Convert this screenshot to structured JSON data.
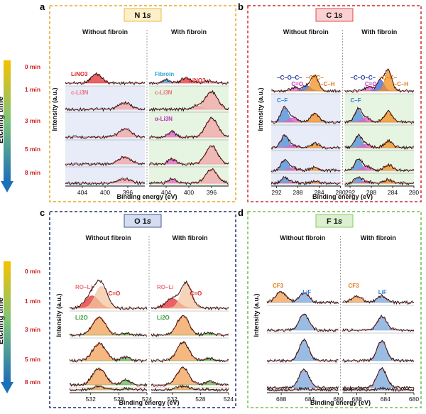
{
  "chart_data": [
    {
      "type": "line",
      "panel_letter": "a",
      "title": "N 1s",
      "title_parts": [
        "N 1",
        "s"
      ],
      "ylabel": "Intensity (a.u.)",
      "xlabel": "Binding energy (eV)",
      "subtitles": [
        "Without fibroin",
        "With fibroin"
      ],
      "x_ticks": [
        "404",
        "400",
        "396"
      ],
      "xlim": [
        407,
        393
      ],
      "time_rows": [
        "0 min",
        "1 min",
        "3 min",
        "5 min",
        "8 min"
      ],
      "colors": {
        "border": "#e6a820",
        "title_bg": "#fdf0c8",
        "bg_without": "#dde4f5",
        "bg_with": "#dcefd6",
        "label": "#d62728"
      },
      "annotations": {
        "without": [
          {
            "row": 0,
            "text": "LiNO3",
            "sub": "3",
            "base": "LiNO",
            "color": "#d62728"
          },
          {
            "row": 1,
            "text": "c-Li3N",
            "color": "#e8737a"
          }
        ],
        "with": [
          {
            "row": 0,
            "text": "Fibroin",
            "color": "#2a9fd6"
          },
          {
            "row": 0,
            "text": "LiNO3",
            "color": "#d62728"
          },
          {
            "row": 1,
            "text": "c-Li3N",
            "color": "#e8737a"
          },
          {
            "row": 2,
            "text": "α-Li3N",
            "color": "#c030c0"
          }
        ]
      },
      "peaks": {
        "without": [
          [
            {
              "center": 401.5,
              "amp": 0.55,
              "fwhm": 2.2,
              "color": "#e03030"
            }
          ],
          [
            {
              "center": 396.5,
              "amp": 0.28,
              "fwhm": 2.5,
              "color": "#f2a5a5"
            }
          ],
          [
            {
              "center": 396.5,
              "amp": 0.32,
              "fwhm": 2.5,
              "color": "#f2a5a5"
            }
          ],
          [
            {
              "center": 396.5,
              "amp": 0.3,
              "fwhm": 2.5,
              "color": "#f2a5a5"
            }
          ],
          [
            {
              "center": 396.5,
              "amp": 0.25,
              "fwhm": 2.5,
              "color": "#f2a5a5"
            }
          ]
        ],
        "with": [
          [
            {
              "center": 404.0,
              "amp": 0.22,
              "fwhm": 1.5,
              "color": "#2a9fd6"
            },
            {
              "center": 400.5,
              "amp": 0.3,
              "fwhm": 2.0,
              "color": "#e03030"
            },
            {
              "center": 396.5,
              "amp": 0.12,
              "fwhm": 2.5,
              "color": "#f2a5a5"
            }
          ],
          [
            {
              "center": 398.5,
              "amp": 0.15,
              "fwhm": 2.0,
              "color": "#f2a5a5"
            },
            {
              "center": 396.0,
              "amp": 0.75,
              "fwhm": 2.5,
              "color": "#f2a5a5"
            }
          ],
          [
            {
              "center": 403.0,
              "amp": 0.22,
              "fwhm": 1.5,
              "color": "#e060d0"
            },
            {
              "center": 396.0,
              "amp": 0.75,
              "fwhm": 2.5,
              "color": "#f2a5a5"
            }
          ],
          [
            {
              "center": 403.0,
              "amp": 0.22,
              "fwhm": 1.5,
              "color": "#e060d0"
            },
            {
              "center": 396.0,
              "amp": 0.75,
              "fwhm": 2.5,
              "color": "#f2a5a5"
            }
          ],
          [
            {
              "center": 403.0,
              "amp": 0.25,
              "fwhm": 1.5,
              "color": "#e060d0"
            },
            {
              "center": 396.0,
              "amp": 0.8,
              "fwhm": 2.5,
              "color": "#f2a5a5"
            }
          ]
        ]
      }
    },
    {
      "type": "line",
      "panel_letter": "b",
      "title": "C 1s",
      "title_parts": [
        "C 1",
        "s"
      ],
      "ylabel": "Intensity (a.u.)",
      "xlabel": "Binding energy (eV)",
      "subtitles": [
        "Without fibroin",
        "With fibroin"
      ],
      "x_ticks": [
        "292",
        "288",
        "284",
        "280"
      ],
      "xlim": [
        293,
        280
      ],
      "time_rows": [
        "0 min",
        "1 min",
        "3 min",
        "5 min",
        "8 min"
      ],
      "colors": {
        "border": "#d62728",
        "title_bg": "#fbd0d0",
        "bg_without": "#dde4f5",
        "bg_with": "#dcefd6"
      },
      "annotations": {
        "without": [
          {
            "row": 0,
            "text": "–C–O–C–",
            "color": "#2233aa"
          },
          {
            "row": 0,
            "text": "C=O",
            "color": "#c030c0"
          },
          {
            "row": 0,
            "text": "–C–C–",
            "color": "#e07a10"
          },
          {
            "row": 0,
            "text": "–C–H",
            "color": "#e07a10"
          },
          {
            "row": 1,
            "text": "C–F",
            "color": "#2a7fd6"
          }
        ],
        "with": [
          {
            "row": 0,
            "text": "–C–O–C–",
            "color": "#2233aa"
          },
          {
            "row": 0,
            "text": "C=O",
            "color": "#c030c0"
          },
          {
            "row": 0,
            "text": "–C–C–",
            "color": "#e07a10"
          },
          {
            "row": 0,
            "text": "–C–H",
            "color": "#e07a10"
          },
          {
            "row": 1,
            "text": "C–F",
            "color": "#2a7fd6"
          }
        ]
      },
      "peaks": {
        "without": [
          [
            {
              "center": 288.5,
              "amp": 0.15,
              "fwhm": 2.0,
              "color": "#e060d0"
            },
            {
              "center": 286.3,
              "amp": 0.25,
              "fwhm": 1.6,
              "color": "#4060d0"
            },
            {
              "center": 284.8,
              "amp": 0.75,
              "fwhm": 1.6,
              "color": "#f0901e"
            }
          ],
          [
            {
              "center": 290.5,
              "amp": 0.5,
              "fwhm": 1.6,
              "color": "#4a8fd8"
            },
            {
              "center": 289.0,
              "amp": 0.15,
              "fwhm": 2.0,
              "color": "#e060d0"
            },
            {
              "center": 284.8,
              "amp": 0.32,
              "fwhm": 1.8,
              "color": "#f0901e"
            }
          ],
          [
            {
              "center": 290.5,
              "amp": 0.52,
              "fwhm": 1.6,
              "color": "#4a8fd8"
            },
            {
              "center": 289.0,
              "amp": 0.12,
              "fwhm": 2.0,
              "color": "#e060d0"
            },
            {
              "center": 284.8,
              "amp": 0.18,
              "fwhm": 1.8,
              "color": "#f0901e"
            }
          ],
          [
            {
              "center": 290.5,
              "amp": 0.5,
              "fwhm": 1.6,
              "color": "#4a8fd8"
            },
            {
              "center": 289.0,
              "amp": 0.12,
              "fwhm": 2.0,
              "color": "#e060d0"
            },
            {
              "center": 284.8,
              "amp": 0.15,
              "fwhm": 1.8,
              "color": "#f0901e"
            }
          ],
          [
            {
              "center": 290.5,
              "amp": 0.45,
              "fwhm": 1.6,
              "color": "#4a8fd8"
            },
            {
              "center": 289.0,
              "amp": 0.1,
              "fwhm": 2.0,
              "color": "#e060d0"
            },
            {
              "center": 284.8,
              "amp": 0.15,
              "fwhm": 1.8,
              "color": "#f0901e"
            }
          ]
        ],
        "with": [
          [
            {
              "center": 288.5,
              "amp": 0.2,
              "fwhm": 1.5,
              "color": "#e060d0"
            },
            {
              "center": 286.3,
              "amp": 0.55,
              "fwhm": 1.5,
              "color": "#4060d0"
            },
            {
              "center": 284.8,
              "amp": 1.0,
              "fwhm": 1.5,
              "color": "#f0901e"
            }
          ],
          [
            {
              "center": 290.5,
              "amp": 0.45,
              "fwhm": 1.6,
              "color": "#4a8fd8"
            },
            {
              "center": 289.0,
              "amp": 0.15,
              "fwhm": 2.0,
              "color": "#e060d0"
            },
            {
              "center": 284.8,
              "amp": 0.38,
              "fwhm": 1.8,
              "color": "#f0901e"
            }
          ],
          [
            {
              "center": 290.5,
              "amp": 0.5,
              "fwhm": 1.6,
              "color": "#4a8fd8"
            },
            {
              "center": 289.0,
              "amp": 0.15,
              "fwhm": 2.0,
              "color": "#e060d0"
            },
            {
              "center": 284.8,
              "amp": 0.3,
              "fwhm": 1.8,
              "color": "#f0901e"
            }
          ],
          [
            {
              "center": 290.5,
              "amp": 0.5,
              "fwhm": 1.6,
              "color": "#4a8fd8"
            },
            {
              "center": 289.0,
              "amp": 0.2,
              "fwhm": 2.0,
              "color": "#e060d0"
            },
            {
              "center": 284.8,
              "amp": 0.28,
              "fwhm": 1.8,
              "color": "#f0901e"
            }
          ],
          [
            {
              "center": 290.5,
              "amp": 0.45,
              "fwhm": 1.6,
              "color": "#4a8fd8"
            },
            {
              "center": 289.0,
              "amp": 0.18,
              "fwhm": 2.0,
              "color": "#e060d0"
            },
            {
              "center": 284.8,
              "amp": 0.32,
              "fwhm": 1.8,
              "color": "#f0901e"
            }
          ]
        ]
      }
    },
    {
      "type": "line",
      "panel_letter": "c",
      "title": "O 1s",
      "title_parts": [
        "O 1",
        "s"
      ],
      "ylabel": "Intensity (a.u.)",
      "xlabel": "Binding energy (eV)",
      "subtitles": [
        "Without fibroin",
        "With fibroin"
      ],
      "x_ticks": [
        "532",
        "528",
        "524"
      ],
      "xlim": [
        535,
        524
      ],
      "time_rows": [
        "0 min",
        "1 min",
        "3 min",
        "5 min",
        "8 min"
      ],
      "colors": {
        "border": "#1f2f6e",
        "title_bg": "#d4ddf2"
      },
      "annotations": {
        "without": [
          {
            "row": 0,
            "text": "RO–Li",
            "color": "#e8737a"
          },
          {
            "row": 0,
            "text": "C=O",
            "color": "#d62728"
          },
          {
            "row": 1,
            "text": "Li2O",
            "color": "#3a9a3a"
          }
        ],
        "with": [
          {
            "row": 0,
            "text": "RO–Li",
            "color": "#e8737a"
          },
          {
            "row": 0,
            "text": "C=O",
            "color": "#d62728"
          },
          {
            "row": 1,
            "text": "Li2O",
            "color": "#3a9a3a"
          }
        ]
      },
      "peaks": {
        "without": [
          [
            {
              "center": 531.8,
              "amp": 0.45,
              "fwhm": 2.2,
              "color": "#e03030"
            },
            {
              "center": 530.5,
              "amp": 0.8,
              "fwhm": 2.0,
              "color": "#f2c6a0"
            }
          ],
          [
            {
              "center": 530.8,
              "amp": 0.75,
              "fwhm": 2.2,
              "color": "#f2a055"
            },
            {
              "center": 527.0,
              "amp": 0.08,
              "fwhm": 1.5,
              "color": "#5cb85c"
            }
          ],
          [
            {
              "center": 530.8,
              "amp": 0.75,
              "fwhm": 2.2,
              "color": "#f2a055"
            },
            {
              "center": 527.0,
              "amp": 0.15,
              "fwhm": 1.5,
              "color": "#5cb85c"
            }
          ],
          [
            {
              "center": 530.8,
              "amp": 0.75,
              "fwhm": 2.2,
              "color": "#f2a055"
            },
            {
              "center": 527.0,
              "amp": 0.22,
              "fwhm": 1.5,
              "color": "#5cb85c"
            }
          ],
          [
            {
              "center": 530.8,
              "amp": 0.75,
              "fwhm": 2.2,
              "color": "#f2a055"
            },
            {
              "center": 527.0,
              "amp": 0.25,
              "fwhm": 1.5,
              "color": "#5cb85c"
            }
          ]
        ],
        "with": [
          [
            {
              "center": 532.0,
              "amp": 0.35,
              "fwhm": 2.2,
              "color": "#e03030"
            },
            {
              "center": 530.0,
              "amp": 0.9,
              "fwhm": 1.8,
              "color": "#f2c6a0"
            }
          ],
          [
            {
              "center": 530.5,
              "amp": 0.8,
              "fwhm": 2.0,
              "color": "#f2a055"
            },
            {
              "center": 526.8,
              "amp": 0.1,
              "fwhm": 1.5,
              "color": "#5cb85c"
            }
          ],
          [
            {
              "center": 530.5,
              "amp": 0.8,
              "fwhm": 2.0,
              "color": "#f2a055"
            },
            {
              "center": 526.8,
              "amp": 0.12,
              "fwhm": 1.5,
              "color": "#5cb85c"
            }
          ],
          [
            {
              "center": 530.5,
              "amp": 0.8,
              "fwhm": 2.0,
              "color": "#f2a055"
            },
            {
              "center": 526.8,
              "amp": 0.15,
              "fwhm": 1.5,
              "color": "#5cb85c"
            }
          ],
          [
            {
              "center": 530.5,
              "amp": 0.8,
              "fwhm": 2.0,
              "color": "#f2a055"
            },
            {
              "center": 526.8,
              "amp": 0.12,
              "fwhm": 1.5,
              "color": "#5cb85c"
            }
          ]
        ]
      }
    },
    {
      "type": "line",
      "panel_letter": "d",
      "title": "F 1s",
      "title_parts": [
        "F 1",
        "s"
      ],
      "ylabel": "Intensity (a.u.)",
      "xlabel": "Binding energy (eV)",
      "subtitles": [
        "Without fibroin",
        "With fibroin"
      ],
      "x_ticks": [
        "688",
        "684",
        "680"
      ],
      "xlim": [
        690,
        680
      ],
      "time_rows": [
        "0 min",
        "1 min",
        "3 min",
        "5 min",
        "8 min"
      ],
      "colors": {
        "border": "#6fbf4a",
        "title_bg": "#dcefd0"
      },
      "annotations": {
        "without": [
          {
            "row": 0,
            "text": "CF3",
            "color": "#e07a10"
          },
          {
            "row": 0,
            "text": "LiF",
            "color": "#2a7fd6"
          }
        ],
        "with": [
          {
            "row": 0,
            "text": "CF3",
            "color": "#e07a10"
          },
          {
            "row": 0,
            "text": "LiF",
            "color": "#2a7fd6"
          }
        ]
      },
      "peaks": {
        "without": [
          [
            {
              "center": 688.0,
              "amp": 0.45,
              "fwhm": 1.8,
              "color": "#f2a055"
            },
            {
              "center": 684.8,
              "amp": 0.4,
              "fwhm": 1.6,
              "color": "#7aa6d8"
            }
          ],
          [
            {
              "center": 684.8,
              "amp": 0.65,
              "fwhm": 1.6,
              "color": "#7aa6d8"
            }
          ],
          [
            {
              "center": 684.8,
              "amp": 0.75,
              "fwhm": 1.6,
              "color": "#7aa6d8"
            }
          ],
          [
            {
              "center": 684.8,
              "amp": 0.75,
              "fwhm": 1.6,
              "color": "#7aa6d8"
            }
          ],
          [
            {
              "center": 684.8,
              "amp": 0.72,
              "fwhm": 1.6,
              "color": "#7aa6d8"
            }
          ]
        ],
        "with": [
          [
            {
              "center": 688.0,
              "amp": 0.25,
              "fwhm": 1.8,
              "color": "#f2a055"
            },
            {
              "center": 684.5,
              "amp": 0.28,
              "fwhm": 1.6,
              "color": "#7aa6d8"
            }
          ],
          [
            {
              "center": 684.5,
              "amp": 0.55,
              "fwhm": 1.6,
              "color": "#7aa6d8"
            }
          ],
          [
            {
              "center": 684.5,
              "amp": 0.7,
              "fwhm": 1.6,
              "color": "#7aa6d8"
            }
          ],
          [
            {
              "center": 684.5,
              "amp": 0.8,
              "fwhm": 1.6,
              "color": "#7aa6d8"
            }
          ],
          [
            {
              "center": 684.5,
              "amp": 0.85,
              "fwhm": 1.6,
              "color": "#7aa6d8"
            }
          ]
        ]
      }
    }
  ],
  "etching_axis": {
    "label": "Etching time",
    "times": [
      "0 min",
      "1 min",
      "3 min",
      "5 min",
      "8 min"
    ],
    "gradient": [
      "#f6c100",
      "#7cc47a",
      "#1d6fb8"
    ],
    "time_color": "#cc1f1f"
  }
}
